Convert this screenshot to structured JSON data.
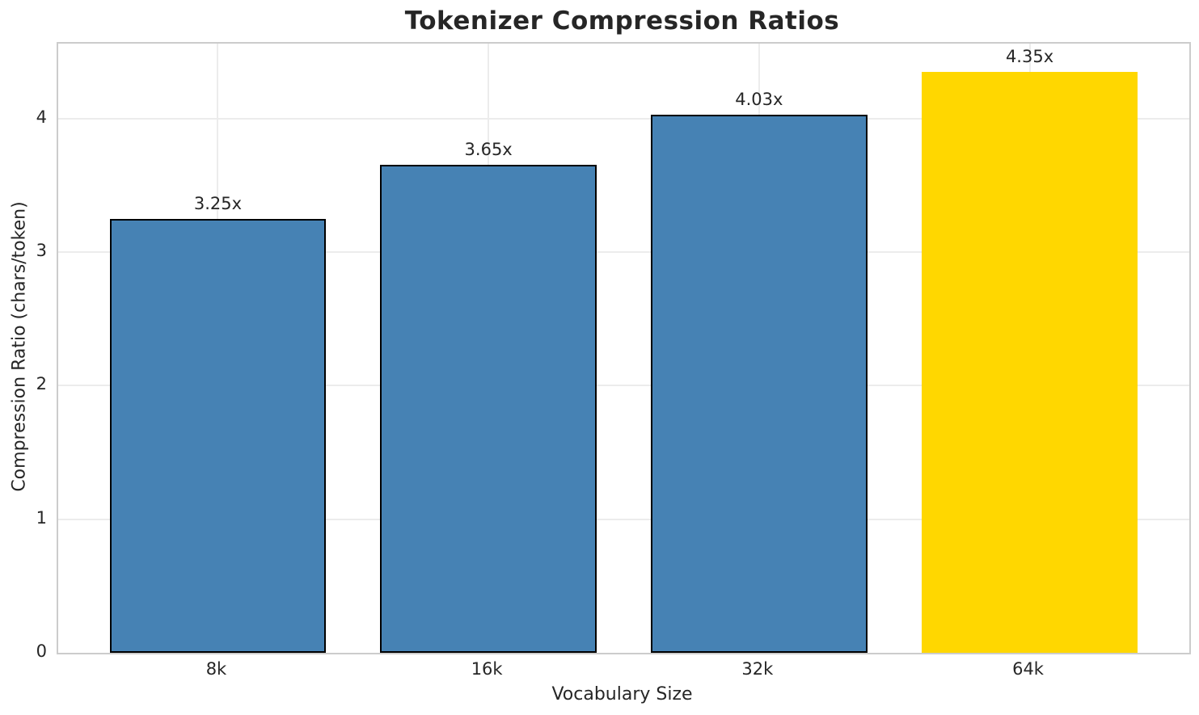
{
  "chart_data": {
    "type": "bar",
    "title": "Tokenizer Compression Ratios",
    "xlabel": "Vocabulary Size",
    "ylabel": "Compression Ratio (chars/token)",
    "categories": [
      "8k",
      "16k",
      "32k",
      "64k"
    ],
    "values": [
      3.25,
      3.65,
      4.03,
      4.35
    ],
    "bar_labels": [
      "3.25x",
      "3.65x",
      "4.03x",
      "4.35x"
    ],
    "bar_colors": [
      "#4682B4",
      "#4682B4",
      "#4682B4",
      "#FFD700"
    ],
    "bar_edge_colors": [
      "#000000",
      "#000000",
      "#000000",
      "none"
    ],
    "highlighted_category": "64k",
    "ylim": [
      0,
      4.56
    ],
    "yticks": [
      "0",
      "1",
      "2",
      "3",
      "4"
    ],
    "grid": true,
    "legend": "none",
    "background_color": "#ffffff",
    "grid_color": "#ececec",
    "spine_color": "#cccccc",
    "text_color": "#262626"
  }
}
